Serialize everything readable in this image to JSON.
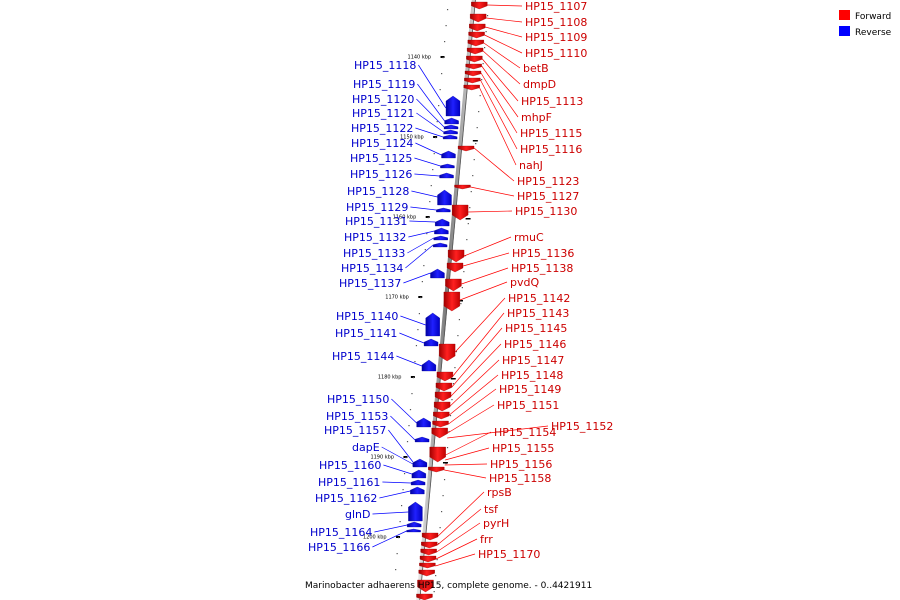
{
  "legend": {
    "forward_label": "Forward",
    "reverse_label": "Reverse",
    "forward_color": "#ff0000",
    "reverse_color": "#0000ff"
  },
  "caption": "Marinobacter adhaerens HP15, complete genome. - 0..4421911",
  "ticks": [
    "1140 kbp",
    "1150 kbp",
    "1160 kbp",
    "1170 kbp",
    "1180 kbp",
    "1190 kbp",
    "1200 kbp"
  ],
  "forward_genes": [
    "HP15_1107",
    "HP15_1108",
    "HP15_1109",
    "HP15_1110",
    "betB",
    "dmpD",
    "HP15_1113",
    "mhpF",
    "HP15_1115",
    "HP15_1116",
    "nahJ",
    "HP15_1123",
    "HP15_1127",
    "HP15_1130",
    "rmuC",
    "HP15_1136",
    "HP15_1138",
    "pvdQ",
    "HP15_1142",
    "HP15_1143",
    "HP15_1145",
    "HP15_1146",
    "HP15_1147",
    "HP15_1148",
    "HP15_1149",
    "HP15_1151",
    "HP15_1152",
    "HP15_1154",
    "HP15_1155",
    "HP15_1156",
    "HP15_1158",
    "rpsB",
    "tsf",
    "pyrH",
    "frr",
    "HP15_1170"
  ],
  "reverse_genes": [
    "HP15_1118",
    "HP15_1119",
    "HP15_1120",
    "HP15_1121",
    "HP15_1122",
    "HP15_1124",
    "HP15_1125",
    "HP15_1126",
    "HP15_1128",
    "HP15_1129",
    "HP15_1131",
    "HP15_1132",
    "HP15_1133",
    "HP15_1134",
    "HP15_1137",
    "HP15_1140",
    "HP15_1141",
    "HP15_1144",
    "HP15_1150",
    "HP15_1153",
    "HP15_1157",
    "dapE",
    "HP15_1160",
    "HP15_1161",
    "HP15_1162",
    "glnD",
    "HP15_1164",
    "HP15_1166"
  ]
}
